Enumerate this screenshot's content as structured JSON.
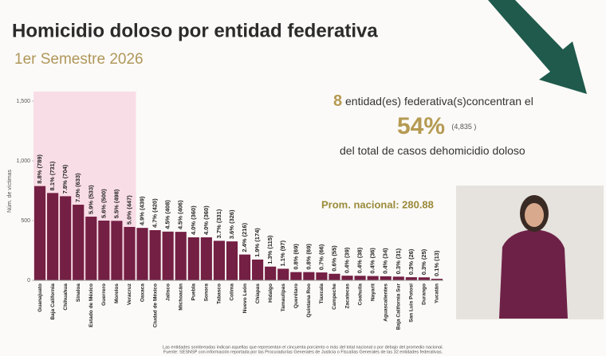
{
  "chart_data": {
    "type": "bar",
    "title": "Homicidio doloso por entidad federativa",
    "subtitle": "1er Semestre 2026",
    "y_label": "Núm. de víctimas",
    "categories": [
      "Guanajuato",
      "Baja California",
      "Chihuahua",
      "Sinaloa",
      "Estado de México",
      "Guerrero",
      "Morelos",
      "Veracruz",
      "Oaxaca",
      "Ciudad de México",
      "Jalisco",
      "Michoacán",
      "Puebla",
      "Sonora",
      "Tabasco",
      "Colima",
      "Nuevo León",
      "Chiapas",
      "Hidalgo",
      "Tamaulipas",
      "Querétaro",
      "Quintana Roo",
      "Tlaxcala",
      "Campeche",
      "Zacatecas",
      "Coahuila",
      "Nayarit",
      "Aguascalientes",
      "Baja California Sur",
      "San Luis Potosí",
      "Durango",
      "Yucatán"
    ],
    "values": [
      789,
      731,
      704,
      633,
      533,
      500,
      498,
      447,
      439,
      420,
      408,
      406,
      360,
      360,
      331,
      326,
      216,
      174,
      115,
      97,
      69,
      69,
      66,
      55,
      39,
      38,
      36,
      34,
      31,
      26,
      25,
      13
    ],
    "value_labels": [
      "8.8% (789)",
      "8.1% (731)",
      "7.8% (704)",
      "7.0% (633)",
      "5.9% (533)",
      "5.6% (500)",
      "5.5% (498)",
      "5.0% (447)",
      "4.9% (439)",
      "4.7% (420)",
      "4.5% (408)",
      "4.5% (406)",
      "4.0% (360)",
      "4.0% (360)",
      "3.7% (331)",
      "3.6% (326)",
      "2.4% (216)",
      "1.9% (174)",
      "1.3% (115)",
      "1.1% (97)",
      "0.8% (69)",
      "0.8% (69)",
      "0.7% (66)",
      "0.6% (55)",
      "0.4% (39)",
      "0.4% (38)",
      "0.4% (36)",
      "0.4% (34)",
      "0.3% (31)",
      "0.3% (26)",
      "0.3% (25)",
      "0.1% (13)"
    ],
    "color": "#741f44",
    "highlight_color": "#f9dde6",
    "ylim": [
      0,
      1500
    ],
    "yticks": [
      0,
      500,
      {
        "value": 1000,
        "label": "1,000"
      },
      {
        "value": 1500,
        "label": "1,500"
      }
    ],
    "callout": {
      "count": 8,
      "text1": "entidad(es) federativa(s)concentran el",
      "percent": "54%",
      "total": "(4,835 )",
      "text2": "del total de casos de",
      "text3": "homicidio doloso"
    },
    "average": "Prom. nacional: 280.88",
    "footnotes": [
      "Las entidades sombreadas indican aquellas que representan el cincuenta porciento o más del total nacional o por debajo del promedio nacional.",
      "Fuente: SESNSP con información reportada por las Procuradurías Generales de Justicia o Fiscalías Generales de las 32 entidades federativas."
    ]
  }
}
